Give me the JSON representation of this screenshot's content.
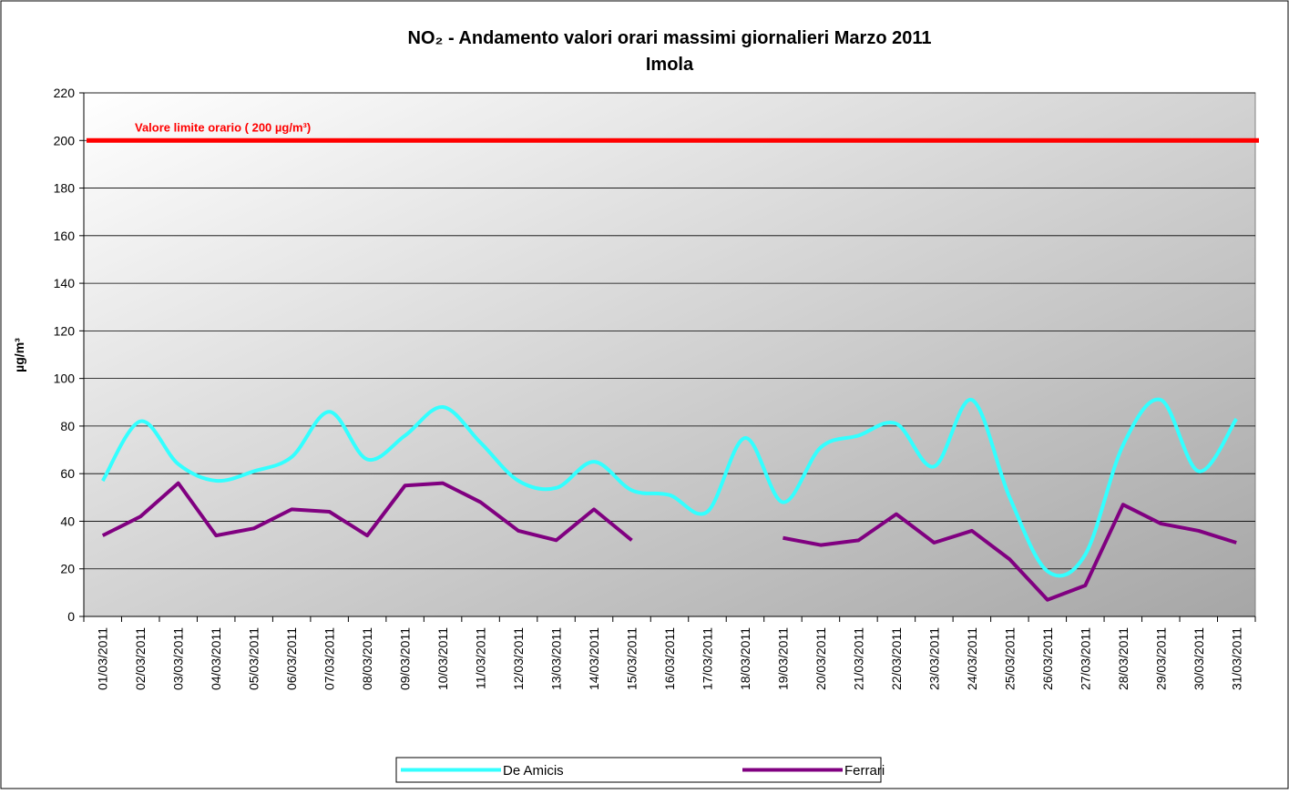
{
  "chart_data": {
    "type": "line",
    "title": "NO₂ - Andamento valori orari massimi giornalieri Marzo 2011",
    "subtitle": "Imola",
    "y_label": "µg/m³",
    "reference_line": {
      "value": 200,
      "label": "Valore limite orario ( 200 µg/m³)",
      "color": "#ff0000"
    },
    "categories": [
      "01/03/2011",
      "02/03/2011",
      "03/03/2011",
      "04/03/2011",
      "05/03/2011",
      "06/03/2011",
      "07/03/2011",
      "08/03/2011",
      "09/03/2011",
      "10/03/2011",
      "11/03/2011",
      "12/03/2011",
      "13/03/2011",
      "14/03/2011",
      "15/03/2011",
      "16/03/2011",
      "17/03/2011",
      "18/03/2011",
      "19/03/2011",
      "20/03/2011",
      "21/03/2011",
      "22/03/2011",
      "23/03/2011",
      "24/03/2011",
      "25/03/2011",
      "26/03/2011",
      "27/03/2011",
      "28/03/2011",
      "29/03/2011",
      "30/03/2011",
      "31/03/2011"
    ],
    "series": [
      {
        "name": "De Amicis",
        "color": "#33ffff",
        "smooth": true,
        "values": [
          57,
          82,
          64,
          57,
          61,
          67,
          86,
          66,
          76,
          88,
          73,
          57,
          54,
          65,
          53,
          51,
          44,
          75,
          48,
          71,
          76,
          81,
          63,
          91,
          50,
          19,
          26,
          72,
          91,
          61,
          83
        ]
      },
      {
        "name": "Ferrari",
        "color": "#800080",
        "smooth": false,
        "values": [
          34,
          42,
          56,
          34,
          37,
          45,
          44,
          34,
          55,
          56,
          48,
          36,
          32,
          45,
          32,
          null,
          null,
          null,
          33,
          30,
          32,
          43,
          31,
          36,
          24,
          7,
          13,
          47,
          39,
          36,
          31
        ]
      }
    ],
    "ylim": [
      0,
      220
    ],
    "yticks": [
      0,
      20,
      40,
      60,
      80,
      100,
      120,
      140,
      160,
      180,
      200,
      220
    ],
    "grid": true,
    "legend": "bottom"
  }
}
